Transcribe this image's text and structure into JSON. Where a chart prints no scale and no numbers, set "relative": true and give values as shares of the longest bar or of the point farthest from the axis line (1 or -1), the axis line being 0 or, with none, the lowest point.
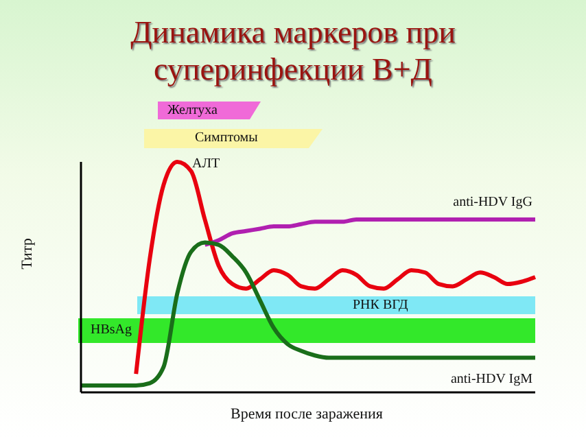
{
  "chart_data": {
    "type": "line",
    "title": "Динамика маркеров при суперинфекции В+Д",
    "xlabel": "Время после заражения",
    "ylabel": "Титр",
    "relative": true,
    "line_style": "solid",
    "categories": [
      null,
      null,
      null,
      null,
      null,
      null,
      null,
      null,
      null,
      null,
      null,
      null,
      null,
      null,
      null,
      null,
      null,
      null,
      null,
      null,
      null,
      null,
      null,
      null,
      null,
      null,
      null,
      null,
      null,
      null,
      null,
      null,
      null,
      null
    ],
    "series": [
      {
        "name": "АЛТ",
        "color": "#e8000f",
        "values": [
          null,
          null,
          null,
          null,
          0.08,
          0.58,
          0.9,
          1,
          0.96,
          0.75,
          0.55,
          0.47,
          0.45,
          0.49,
          0.53,
          0.51,
          0.46,
          0.45,
          0.49,
          0.53,
          0.51,
          0.46,
          0.45,
          0.49,
          0.53,
          0.52,
          0.47,
          0.46,
          0.49,
          0.52,
          0.5,
          0.47,
          0.48,
          0.5
        ]
      },
      {
        "name": "anti-HDV IgG",
        "color": "#b020b0",
        "values": [
          null,
          null,
          null,
          null,
          null,
          null,
          null,
          null,
          null,
          0.64,
          0.66,
          0.69,
          0.7,
          0.71,
          0.72,
          0.72,
          0.73,
          0.74,
          0.74,
          0.74,
          0.75,
          0.75,
          0.75,
          0.75,
          0.75,
          0.75,
          0.75,
          0.75,
          0.75,
          0.75,
          0.75,
          0.75,
          0.75,
          0.75
        ]
      },
      {
        "name": "anti-HDV IgM",
        "color": "#1a6e1a",
        "values": [
          0.03,
          0.03,
          0.03,
          0.03,
          0.03,
          0.04,
          0.11,
          0.43,
          0.61,
          0.65,
          0.64,
          0.59,
          0.52,
          0.4,
          0.28,
          0.21,
          0.18,
          0.16,
          0.15,
          0.15,
          0.15,
          0.15,
          0.15,
          0.15,
          0.15,
          0.15,
          0.15,
          0.15,
          0.15,
          0.15,
          0.15,
          0.15,
          0.15,
          0.15
        ]
      }
    ],
    "annotations": [
      "Желтуха",
      "Симптомы",
      "РНК ВГД",
      "HBsAg"
    ]
  }
}
